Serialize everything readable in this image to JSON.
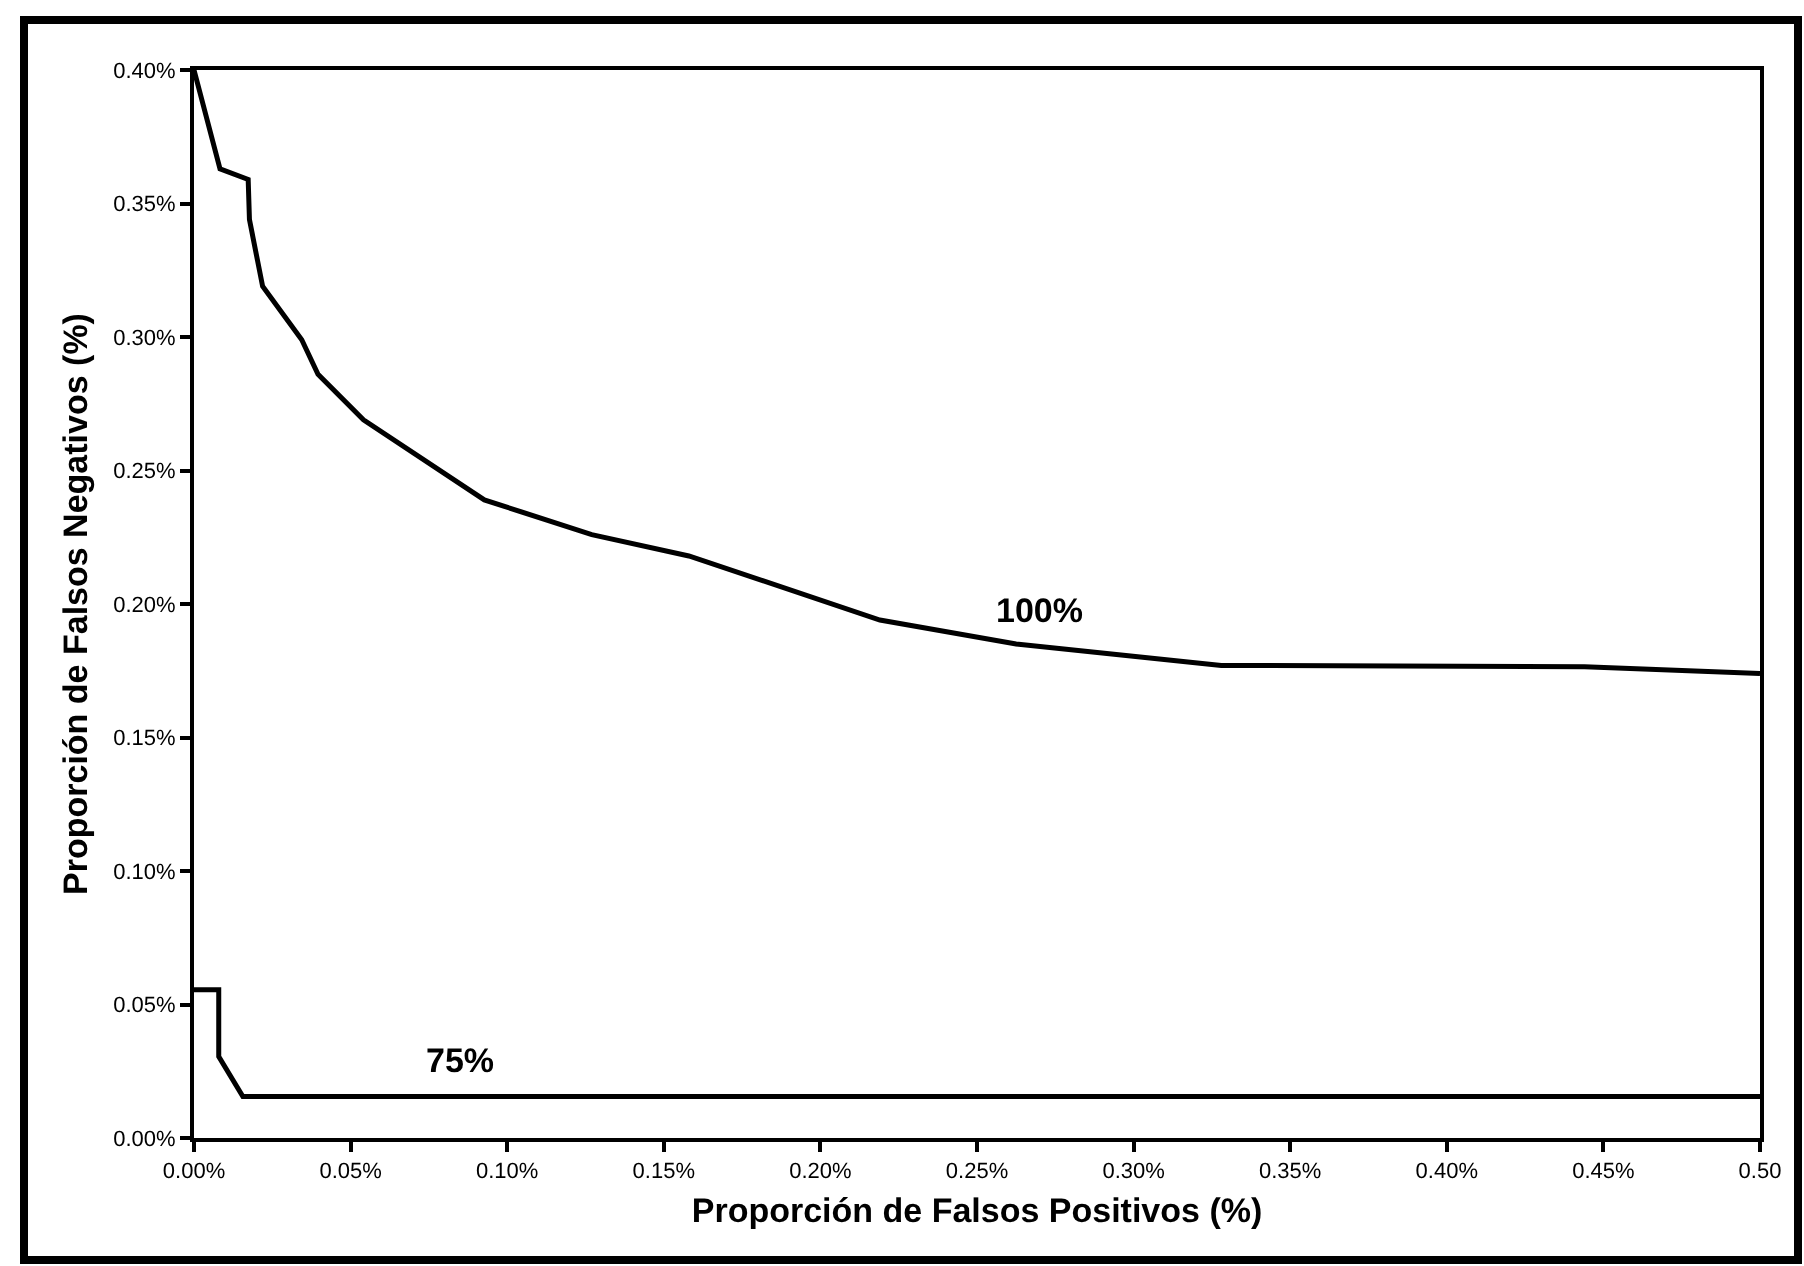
{
  "chart_data": {
    "type": "line",
    "xlabel": "Proporción de Falsos Positivos (%)",
    "ylabel": "Proporción de Falsos Negativos (%)",
    "series": [
      {
        "name": "100%",
        "color": "#000000",
        "x": [
          0,
          0.0083,
          0.0173,
          0.0177,
          0.0219,
          0.0344,
          0.0396,
          0.0541,
          0.0927,
          0.127,
          0.158,
          0.219,
          0.2625,
          0.328,
          0.444,
          0.5
        ],
        "values": [
          0.4,
          0.363,
          0.359,
          0.344,
          0.319,
          0.299,
          0.286,
          0.269,
          0.239,
          0.226,
          0.218,
          0.194,
          0.185,
          0.177,
          0.1765,
          0.174
        ]
      },
      {
        "name": "75%",
        "color": "#000000",
        "x": [
          0,
          0.0079,
          0.0079,
          0.0156,
          0.5
        ],
        "values": [
          0.0555,
          0.0555,
          0.0305,
          0.0155,
          0.0155
        ]
      }
    ],
    "xlim": [
      0,
      0.5
    ],
    "ylim": [
      0,
      0.4
    ],
    "xticks": [
      {
        "value": 0,
        "label": "0.00%"
      },
      {
        "value": 0.05,
        "label": "0.05%"
      },
      {
        "value": 0.1,
        "label": "0.10%"
      },
      {
        "value": 0.15,
        "label": "0.15%"
      },
      {
        "value": 0.2,
        "label": "0.20%"
      },
      {
        "value": 0.25,
        "label": "0.25%"
      },
      {
        "value": 0.3,
        "label": "0.30%"
      },
      {
        "value": 0.35,
        "label": "0.35%"
      },
      {
        "value": 0.4,
        "label": "0.40%"
      },
      {
        "value": 0.45,
        "label": "0.45%"
      },
      {
        "value": 0.5,
        "label": "0.50"
      }
    ],
    "yticks": [
      {
        "value": 0,
        "label": "0.00%"
      },
      {
        "value": 0.05,
        "label": "0.05%"
      },
      {
        "value": 0.1,
        "label": "0.10%"
      },
      {
        "value": 0.15,
        "label": "0.15%"
      },
      {
        "value": 0.2,
        "label": "0.20%"
      },
      {
        "value": 0.25,
        "label": "0.25%"
      },
      {
        "value": 0.3,
        "label": "0.30%"
      },
      {
        "value": 0.35,
        "label": "0.35%"
      },
      {
        "value": 0.4,
        "label": "0.40%"
      }
    ],
    "legend": false,
    "marker": "none",
    "line_style": "solid"
  }
}
